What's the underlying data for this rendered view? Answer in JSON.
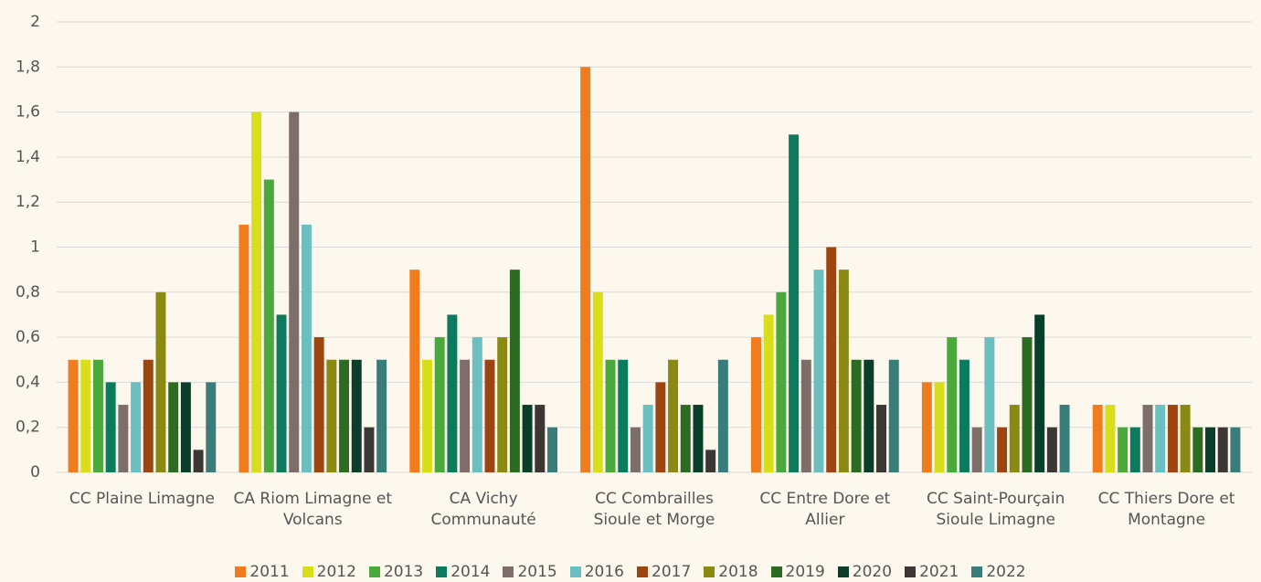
{
  "chart_data": {
    "type": "bar",
    "categories": [
      "CC Plaine Limagne",
      "CA Riom Limagne et Volcans",
      "CA Vichy Communauté",
      "CC Combrailles Sioule et Morge",
      "CC Entre Dore et Allier",
      "CC Saint-Pourçain Sioule Limagne",
      "CC Thiers Dore et Montagne"
    ],
    "series": [
      {
        "name": "2011",
        "color": "#f07c1e",
        "values": [
          0.5,
          1.1,
          0.9,
          1.8,
          0.6,
          0.4,
          0.3
        ]
      },
      {
        "name": "2012",
        "color": "#d9de1a",
        "values": [
          0.5,
          1.6,
          0.5,
          0.8,
          0.7,
          0.4,
          0.3
        ]
      },
      {
        "name": "2013",
        "color": "#4aa83c",
        "values": [
          0.5,
          1.3,
          0.6,
          0.5,
          0.8,
          0.6,
          0.2
        ]
      },
      {
        "name": "2014",
        "color": "#0c7a5c",
        "values": [
          0.4,
          0.7,
          0.7,
          0.5,
          1.5,
          0.5,
          0.2
        ]
      },
      {
        "name": "2015",
        "color": "#7d6e6c",
        "values": [
          0.3,
          1.6,
          0.5,
          0.2,
          0.5,
          0.2,
          0.3
        ]
      },
      {
        "name": "2016",
        "color": "#6bbfc0",
        "values": [
          0.4,
          1.1,
          0.6,
          0.3,
          0.9,
          0.6,
          0.3
        ]
      },
      {
        "name": "2017",
        "color": "#9c4510",
        "values": [
          0.5,
          0.6,
          0.5,
          0.4,
          1.0,
          0.2,
          0.3
        ]
      },
      {
        "name": "2018",
        "color": "#8a8a12",
        "values": [
          0.8,
          0.5,
          0.6,
          0.5,
          0.9,
          0.3,
          0.3
        ]
      },
      {
        "name": "2019",
        "color": "#2e6b22",
        "values": [
          0.4,
          0.5,
          0.9,
          0.3,
          0.5,
          0.6,
          0.2
        ]
      },
      {
        "name": "2020",
        "color": "#0a3d2a",
        "values": [
          0.4,
          0.5,
          0.3,
          0.3,
          0.5,
          0.7,
          0.2
        ]
      },
      {
        "name": "2021",
        "color": "#3c3634",
        "values": [
          0.1,
          0.2,
          0.3,
          0.1,
          0.3,
          0.2,
          0.2
        ]
      },
      {
        "name": "2022",
        "color": "#3a7c7a",
        "values": [
          0.4,
          0.5,
          0.2,
          0.5,
          0.5,
          0.3,
          0.2
        ]
      }
    ],
    "ylim": [
      0,
      2
    ],
    "yticks": [
      0,
      {
        "value": 0.2,
        "label": "0,2"
      },
      {
        "value": 0.4,
        "label": "0,4"
      },
      {
        "value": 0.6,
        "label": "0,6"
      },
      {
        "value": 0.8,
        "label": "0,8"
      },
      1,
      {
        "value": 1.2,
        "label": "1,2"
      },
      {
        "value": 1.4,
        "label": "1,4"
      },
      {
        "value": 1.6,
        "label": "1,6"
      },
      {
        "value": 1.8,
        "label": "1,8"
      },
      2
    ],
    "grid": true,
    "legend": "bottom"
  }
}
